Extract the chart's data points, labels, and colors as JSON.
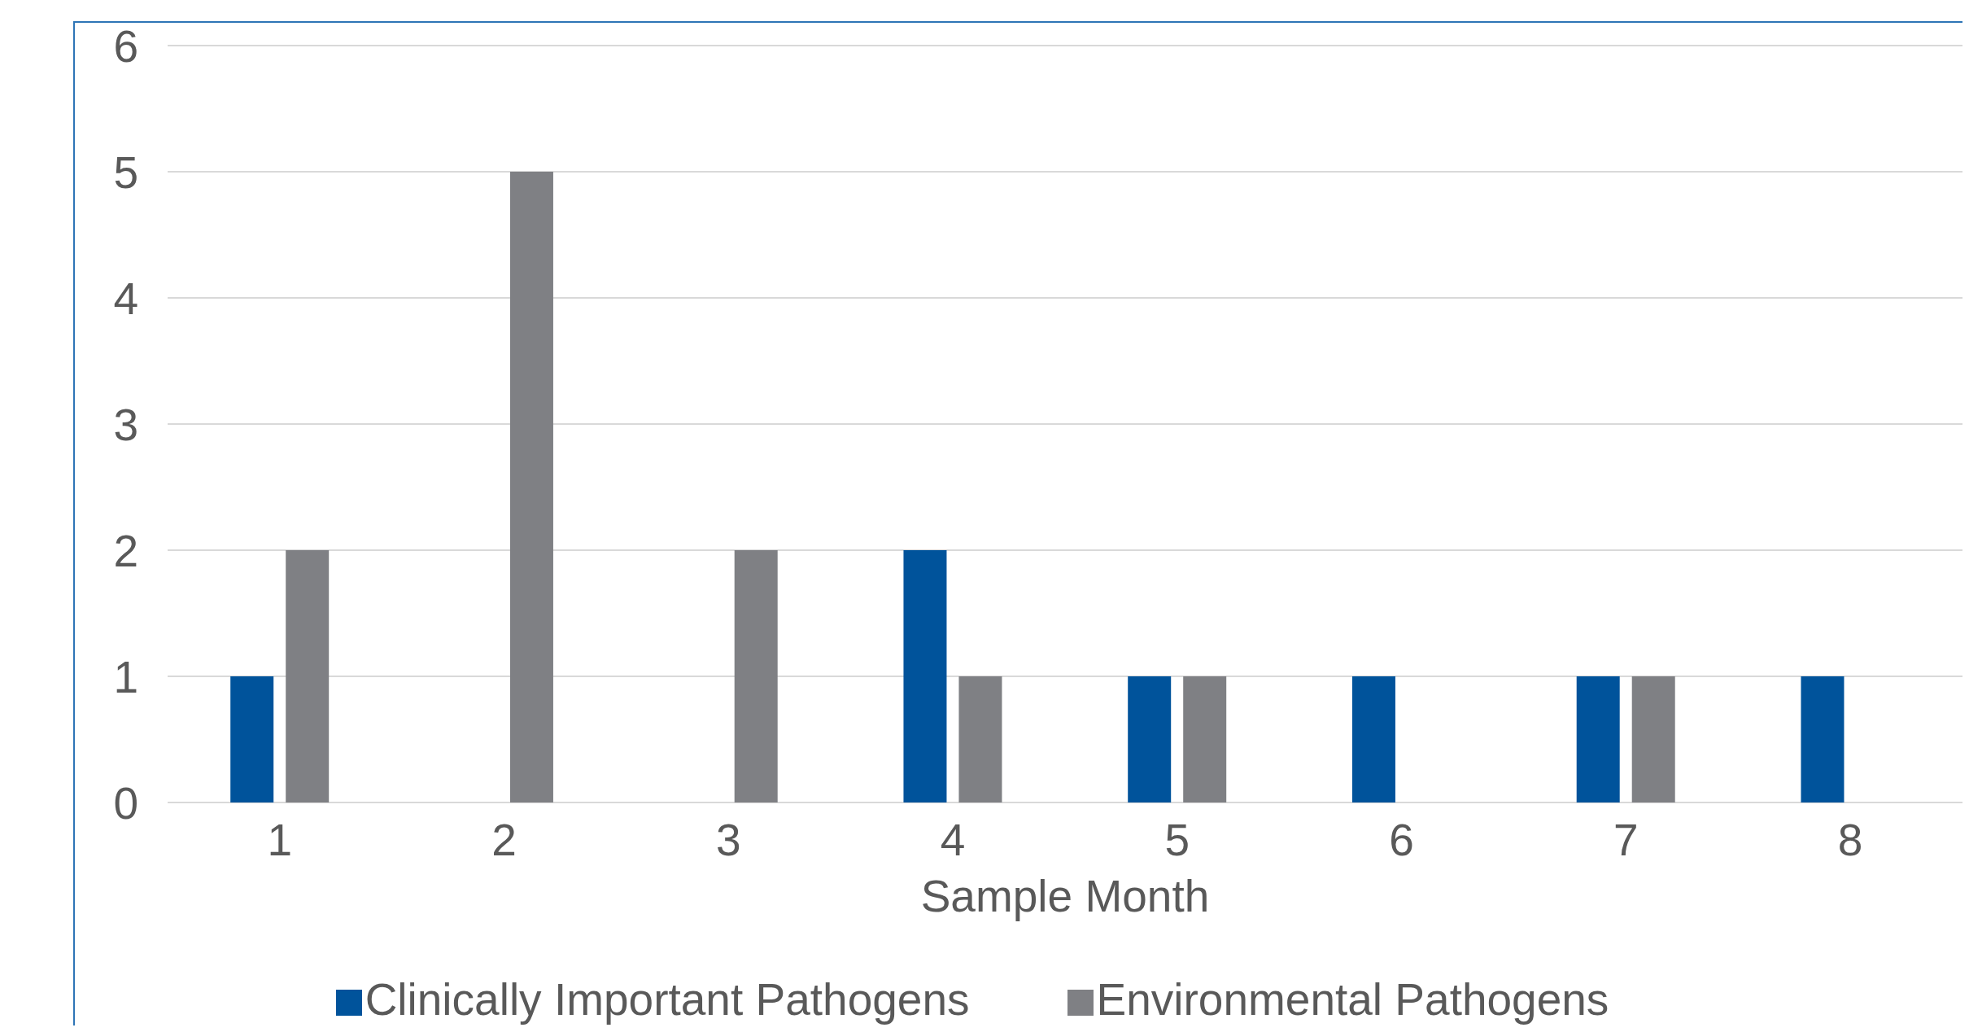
{
  "chart_data": {
    "type": "bar",
    "xlabel": "Sample Month",
    "categories": [
      "1",
      "2",
      "3",
      "4",
      "5",
      "6",
      "7",
      "8"
    ],
    "series": [
      {
        "name": "Clinically Important Pathogens",
        "color": "#00539b",
        "values": [
          1,
          0,
          0,
          2,
          1,
          1,
          1,
          1
        ]
      },
      {
        "name": "Environmental Pathogens",
        "color": "#7f8084",
        "values": [
          2,
          5,
          2,
          1,
          1,
          0,
          1,
          0
        ]
      }
    ],
    "ylim": [
      0,
      6
    ],
    "yticks": [
      0,
      1,
      2,
      3,
      4,
      5,
      6
    ],
    "grid": "y",
    "legend": "bottom"
  }
}
